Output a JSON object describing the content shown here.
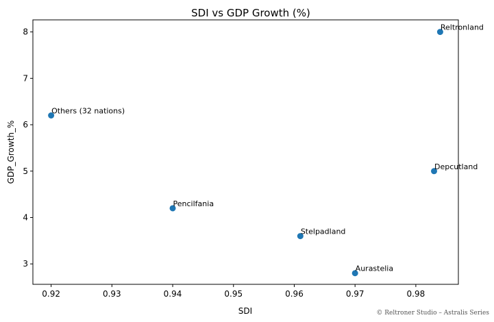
{
  "chart_data": {
    "type": "scatter",
    "title": "SDI vs GDP Growth (%)",
    "xlabel": "SDI",
    "ylabel": "GDP_Growth_%",
    "xlim": [
      0.917,
      0.987
    ],
    "ylim": [
      2.56,
      8.26
    ],
    "xticks": [
      0.92,
      0.93,
      0.94,
      0.95,
      0.96,
      0.97,
      0.98
    ],
    "xtick_labels": [
      "0.92",
      "0.93",
      "0.94",
      "0.95",
      "0.96",
      "0.97",
      "0.98"
    ],
    "yticks": [
      3,
      4,
      5,
      6,
      7,
      8
    ],
    "ytick_labels": [
      "3",
      "4",
      "5",
      "6",
      "7",
      "8"
    ],
    "grid": false,
    "marker_color": "#1f77b4",
    "points": [
      {
        "label": "Others (32 nations)",
        "x": 0.92,
        "y": 6.2
      },
      {
        "label": "Pencilfania",
        "x": 0.94,
        "y": 4.2
      },
      {
        "label": "Stelpadland",
        "x": 0.961,
        "y": 3.6
      },
      {
        "label": "Aurastelia",
        "x": 0.97,
        "y": 2.8
      },
      {
        "label": "Depcutland",
        "x": 0.983,
        "y": 5.0
      },
      {
        "label": "Reltronland",
        "x": 0.984,
        "y": 8.0
      }
    ]
  },
  "credit": "© Reltroner Studio – Astralis Series"
}
